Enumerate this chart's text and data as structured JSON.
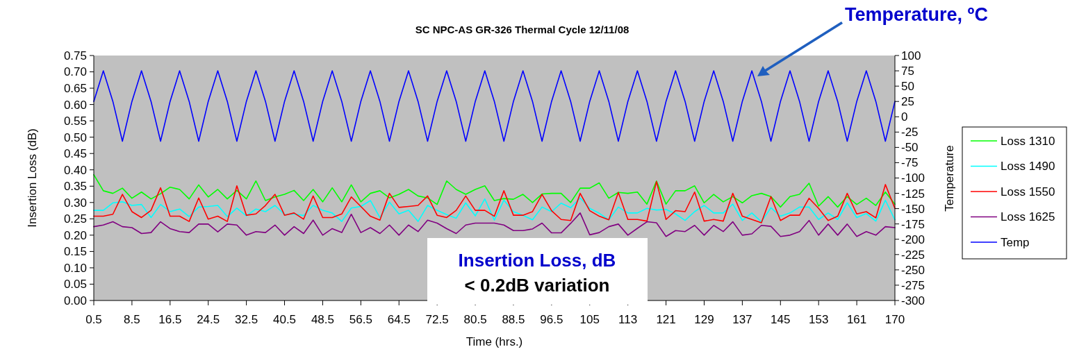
{
  "chart_data": {
    "type": "line",
    "title": "SC NPC-AS GR-326 Thermal Cycle 12/11/08",
    "xlabel": "Time (hrs.)",
    "ylabel": "Insertion Loss (dB)",
    "y2label": "Temperature",
    "categories": [
      "0.5",
      null,
      null,
      null,
      "8.5",
      null,
      null,
      null,
      "16.5",
      null,
      null,
      null,
      "24.5",
      null,
      null,
      null,
      "32.5",
      null,
      null,
      null,
      "40.5",
      null,
      null,
      null,
      "48.5",
      null,
      null,
      null,
      "56.5",
      null,
      null,
      null,
      "64.5",
      null,
      null,
      null,
      "72.5",
      null,
      null,
      null,
      "80.5",
      null,
      null,
      null,
      "88.5",
      null,
      null,
      null,
      "96.5",
      null,
      null,
      null,
      "105",
      null,
      null,
      null,
      "113",
      null,
      null,
      null,
      "121",
      null,
      null,
      null,
      "129",
      null,
      null,
      null,
      "137",
      null,
      null,
      null,
      "145",
      null,
      null,
      null,
      "153",
      null,
      null,
      null,
      "161",
      null,
      null,
      null,
      "170"
    ],
    "series": [
      {
        "name": "Loss 1310",
        "color": "#00ff00",
        "values": [
          0.385,
          0.336,
          0.328,
          0.344,
          0.313,
          0.332,
          0.311,
          0.327,
          0.347,
          0.34,
          0.311,
          0.354,
          0.317,
          0.34,
          0.311,
          0.337,
          0.311,
          0.366,
          0.306,
          0.317,
          0.325,
          0.337,
          0.306,
          0.34,
          0.302,
          0.345,
          0.302,
          0.354,
          0.302,
          0.328,
          0.336,
          0.314,
          0.325,
          0.34,
          0.32,
          0.314,
          0.294,
          0.366,
          0.34,
          0.325,
          0.34,
          0.351,
          0.306,
          0.312,
          0.31,
          0.325,
          0.3,
          0.326,
          0.328,
          0.328,
          0.3,
          0.344,
          0.344,
          0.36,
          0.313,
          0.331,
          0.328,
          0.332,
          0.295,
          0.366,
          0.295,
          0.336,
          0.336,
          0.351,
          0.299,
          0.325,
          0.302,
          0.318,
          0.299,
          0.321,
          0.328,
          0.318,
          0.286,
          0.318,
          0.325,
          0.359,
          0.289,
          0.318,
          0.286,
          0.318,
          0.294,
          0.313,
          0.291,
          0.332,
          0.295
        ]
      },
      {
        "name": "Loss 1490",
        "color": "#00ffff",
        "values": [
          0.276,
          0.276,
          0.299,
          0.302,
          0.291,
          0.294,
          0.254,
          0.294,
          0.272,
          0.28,
          0.257,
          0.286,
          0.288,
          0.291,
          0.257,
          0.283,
          0.259,
          0.28,
          0.272,
          0.291,
          0.263,
          0.265,
          0.26,
          0.291,
          0.276,
          0.268,
          0.242,
          0.283,
          0.288,
          0.306,
          0.254,
          0.301,
          0.265,
          0.276,
          0.242,
          0.291,
          0.276,
          0.263,
          0.252,
          0.299,
          0.259,
          0.311,
          0.246,
          0.307,
          0.272,
          0.261,
          0.247,
          0.286,
          0.272,
          0.298,
          0.284,
          0.314,
          0.282,
          0.267,
          0.247,
          0.286,
          0.268,
          0.268,
          0.282,
          0.277,
          0.279,
          0.265,
          0.245,
          0.272,
          0.291,
          0.268,
          0.268,
          0.295,
          0.245,
          0.268,
          0.241,
          0.284,
          0.258,
          0.268,
          0.286,
          0.286,
          0.248,
          0.268,
          0.248,
          0.299,
          0.254,
          0.266,
          0.243,
          0.307,
          0.247
        ]
      },
      {
        "name": "Loss 1550",
        "color": "#ff0000",
        "values": [
          0.258,
          0.258,
          0.264,
          0.325,
          0.272,
          0.254,
          0.276,
          0.345,
          0.258,
          0.258,
          0.242,
          0.314,
          0.249,
          0.258,
          0.242,
          0.351,
          0.261,
          0.265,
          0.291,
          0.325,
          0.261,
          0.268,
          0.249,
          0.32,
          0.254,
          0.254,
          0.265,
          0.317,
          0.288,
          0.258,
          0.246,
          0.328,
          0.285,
          0.288,
          0.291,
          0.32,
          0.261,
          0.254,
          0.276,
          0.32,
          0.276,
          0.276,
          0.258,
          0.336,
          0.261,
          0.261,
          0.272,
          0.325,
          0.275,
          0.248,
          0.245,
          0.328,
          0.275,
          0.258,
          0.247,
          0.331,
          0.248,
          0.248,
          0.243,
          0.364,
          0.248,
          0.275,
          0.272,
          0.332,
          0.243,
          0.248,
          0.243,
          0.328,
          0.258,
          0.248,
          0.238,
          0.318,
          0.245,
          0.261,
          0.261,
          0.313,
          0.282,
          0.245,
          0.258,
          0.328,
          0.265,
          0.272,
          0.253,
          0.355,
          0.282
        ]
      },
      {
        "name": "Loss 1625",
        "color": "#800080",
        "values": [
          0.226,
          0.231,
          0.241,
          0.226,
          0.223,
          0.205,
          0.208,
          0.241,
          0.22,
          0.211,
          0.208,
          0.234,
          0.234,
          0.21,
          0.234,
          0.231,
          0.2,
          0.211,
          0.208,
          0.231,
          0.2,
          0.226,
          0.205,
          0.246,
          0.2,
          0.22,
          0.208,
          0.264,
          0.208,
          0.223,
          0.205,
          0.231,
          0.2,
          0.231,
          0.211,
          0.246,
          0.237,
          0.22,
          0.205,
          0.231,
          0.237,
          0.237,
          0.237,
          0.231,
          0.214,
          0.214,
          0.219,
          0.237,
          0.207,
          0.207,
          0.236,
          0.268,
          0.201,
          0.208,
          0.226,
          0.234,
          0.2,
          0.221,
          0.241,
          0.238,
          0.196,
          0.214,
          0.211,
          0.23,
          0.2,
          0.23,
          0.211,
          0.241,
          0.2,
          0.204,
          0.23,
          0.227,
          0.196,
          0.2,
          0.211,
          0.245,
          0.2,
          0.234,
          0.2,
          0.234,
          0.196,
          0.211,
          0.2,
          0.226,
          0.223
        ]
      },
      {
        "name": "Temp",
        "color": "#0000ff",
        "axis": "y2",
        "values": [
          25,
          75,
          25,
          -40,
          25,
          75,
          25,
          -40,
          25,
          75,
          25,
          -40,
          25,
          75,
          25,
          -40,
          25,
          75,
          25,
          -40,
          25,
          75,
          25,
          -40,
          25,
          75,
          25,
          -40,
          25,
          75,
          25,
          -40,
          25,
          75,
          25,
          -40,
          25,
          75,
          25,
          -40,
          25,
          75,
          25,
          -40,
          25,
          75,
          25,
          -40,
          25,
          75,
          25,
          -40,
          25,
          75,
          25,
          -40,
          25,
          75,
          25,
          -40,
          25,
          75,
          25,
          -40,
          25,
          75,
          25,
          -40,
          25,
          75,
          25,
          -40,
          25,
          75,
          25,
          -40,
          25,
          75,
          25,
          -40,
          25,
          75,
          25,
          -40,
          25
        ]
      }
    ],
    "ylim": [
      0,
      0.75
    ],
    "yticks": [
      {
        "value": 0,
        "label": "0.00"
      },
      {
        "value": 0.05,
        "label": "0.05"
      },
      {
        "value": 0.1,
        "label": "0.10"
      },
      {
        "value": 0.15,
        "label": "0.15"
      },
      {
        "value": 0.2,
        "label": "0.20"
      },
      {
        "value": 0.25,
        "label": "0.25"
      },
      {
        "value": 0.3,
        "label": "0.30"
      },
      {
        "value": 0.35,
        "label": "0.35"
      },
      {
        "value": 0.4,
        "label": "0.40"
      },
      {
        "value": 0.45,
        "label": "0.45"
      },
      {
        "value": 0.5,
        "label": "0.50"
      },
      {
        "value": 0.55,
        "label": "0.55"
      },
      {
        "value": 0.6,
        "label": "0.60"
      },
      {
        "value": 0.65,
        "label": "0.65"
      },
      {
        "value": 0.7,
        "label": "0.70"
      },
      {
        "value": 0.75,
        "label": "0.75"
      }
    ],
    "y2lim": [
      -300,
      100
    ],
    "y2ticks": [
      -300,
      -275,
      -250,
      -225,
      -200,
      -175,
      -150,
      -125,
      -100,
      -75,
      -50,
      -25,
      0,
      25,
      50,
      75,
      100
    ],
    "legend": "right",
    "annotations": [
      "Temperature, ºC",
      "Insertion Loss, dB",
      "< 0.2dB variation"
    ]
  }
}
